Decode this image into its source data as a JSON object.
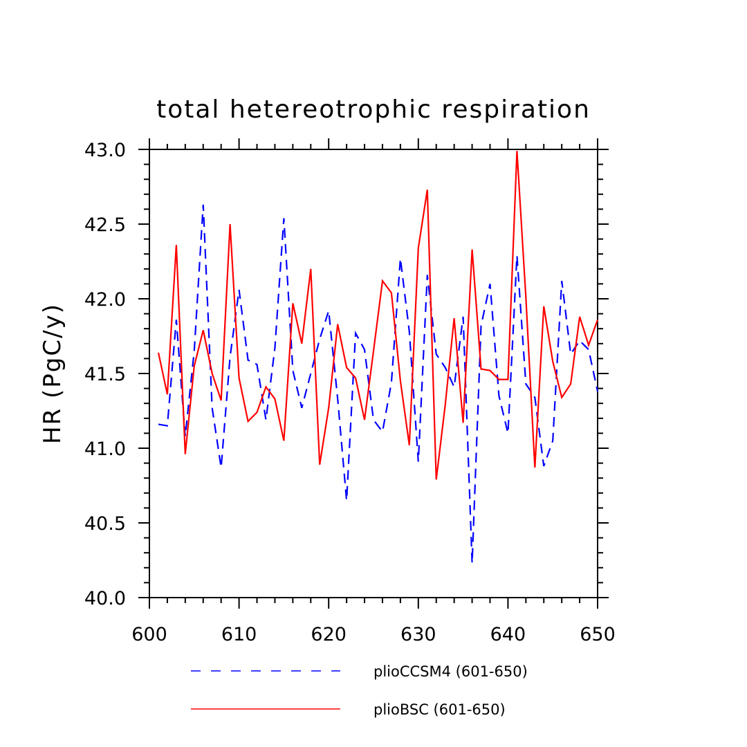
{
  "chart_data": {
    "type": "line",
    "title": "total hetereotrophic respiration",
    "xlabel": "",
    "ylabel": "HR  (PgC/y)",
    "xlim": [
      600,
      650
    ],
    "ylim": [
      40.0,
      43.0
    ],
    "x_ticks": [
      "600",
      "610",
      "620",
      "630",
      "640",
      "650"
    ],
    "y_ticks": [
      "40.0",
      "40.5",
      "41.0",
      "41.5",
      "42.0",
      "42.5",
      "43.0"
    ],
    "x": [
      601,
      602,
      603,
      604,
      605,
      606,
      607,
      608,
      609,
      610,
      611,
      612,
      613,
      614,
      615,
      616,
      617,
      618,
      619,
      620,
      621,
      622,
      623,
      624,
      625,
      626,
      627,
      628,
      629,
      630,
      631,
      632,
      633,
      634,
      635,
      636,
      637,
      638,
      639,
      640,
      641,
      642,
      643,
      644,
      645,
      646,
      647,
      648,
      649,
      650
    ],
    "grid": false,
    "legend_position": "bottom",
    "series": [
      {
        "name": "plioCCSM4 (601-650)",
        "color": "#0000ff",
        "dash": "dashed",
        "values": [
          41.16,
          41.15,
          41.86,
          41.08,
          41.65,
          42.63,
          41.27,
          40.87,
          41.61,
          42.06,
          41.59,
          41.56,
          41.19,
          41.67,
          42.54,
          41.52,
          41.27,
          41.5,
          41.73,
          41.92,
          41.33,
          40.65,
          41.77,
          41.66,
          41.19,
          41.11,
          41.44,
          42.27,
          41.78,
          40.91,
          42.16,
          41.63,
          41.54,
          41.41,
          41.88,
          40.23,
          41.82,
          42.1,
          41.35,
          41.1,
          42.29,
          41.43,
          41.34,
          40.88,
          41.05,
          42.12,
          41.63,
          41.72,
          41.66,
          41.38
        ]
      },
      {
        "name": "plioBSC (601-650)",
        "color": "#ff0000",
        "dash": "solid",
        "values": [
          41.64,
          41.36,
          42.36,
          40.96,
          41.55,
          41.79,
          41.5,
          41.32,
          42.5,
          41.47,
          41.18,
          41.24,
          41.41,
          41.33,
          41.05,
          41.97,
          41.7,
          42.2,
          40.89,
          41.27,
          41.83,
          41.54,
          41.47,
          41.19,
          41.65,
          42.12,
          42.04,
          41.45,
          41.02,
          42.34,
          42.73,
          40.79,
          41.29,
          41.87,
          41.17,
          42.33,
          41.53,
          41.52,
          41.46,
          41.46,
          42.99,
          42.01,
          40.87,
          41.95,
          41.58,
          41.34,
          41.43,
          41.88,
          41.69,
          41.86
        ]
      }
    ]
  }
}
